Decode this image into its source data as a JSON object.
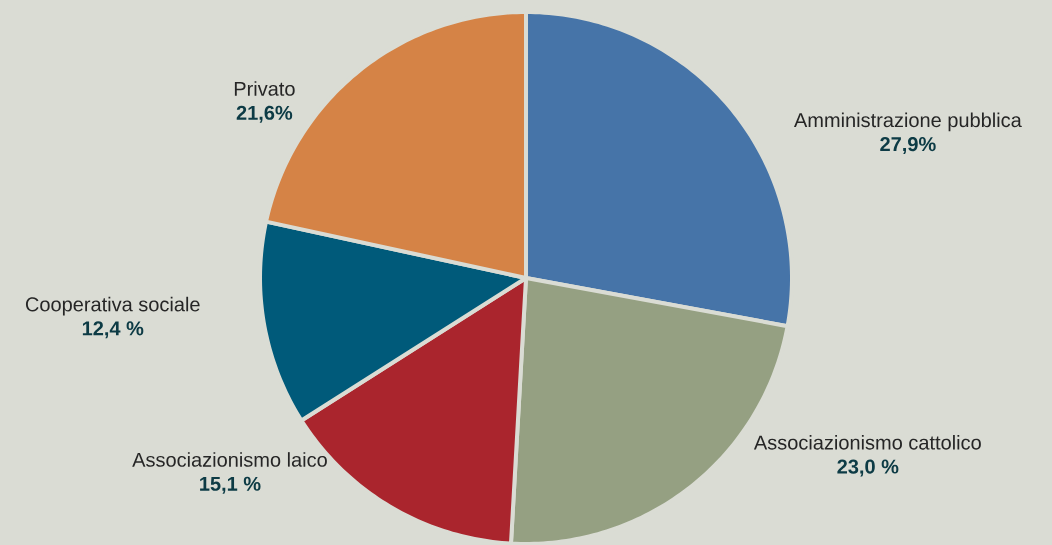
{
  "chart_data": {
    "type": "pie",
    "categories": [
      "Amministrazione pubblica",
      "Associazionismo cattolico",
      "Associazionismo laico",
      "Cooperativa  sociale",
      "Privato"
    ],
    "values": [
      27.9,
      23.0,
      15.1,
      12.4,
      21.6
    ],
    "value_labels": [
      "27,9%",
      "23,0 %",
      "15,1 %",
      "12,4 %",
      "21,6%"
    ],
    "colors": [
      "#4674a8",
      "#95a082",
      "#aa252d",
      "#005a7a",
      "#d58346"
    ]
  }
}
